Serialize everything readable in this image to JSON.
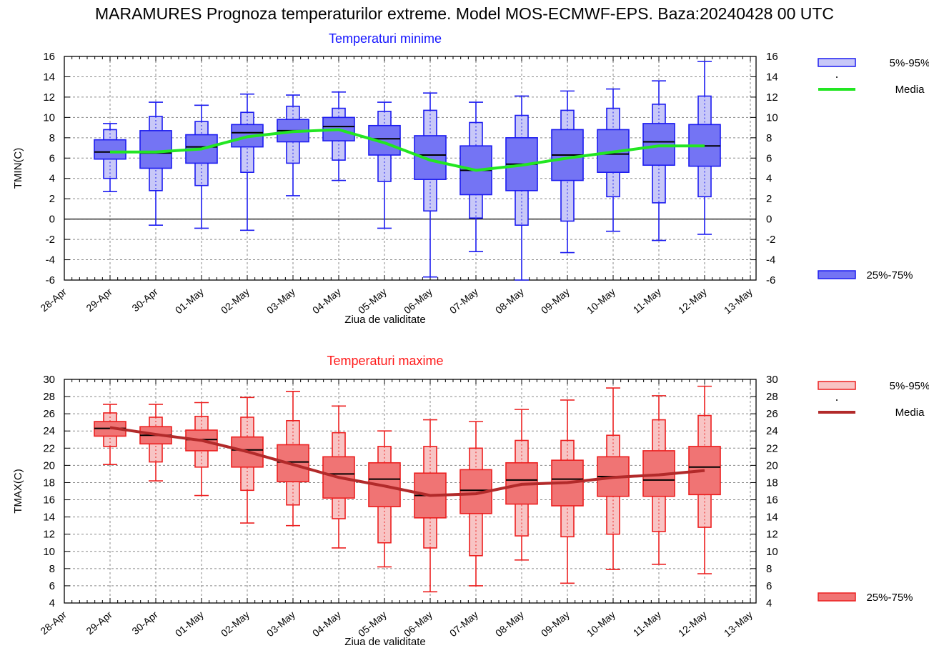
{
  "title": "MARAMURES  Prognoza temperaturilor extreme.  Model MOS-ECMWF-EPS. Baza:20240428 00 UTC",
  "chart_data": [
    {
      "type": "box",
      "title": "Temperaturi minime",
      "xlabel": "Ziua de validitate",
      "ylabel": "TMIN(C)",
      "ylim": [
        -6,
        16
      ],
      "yticks": [
        -6,
        -4,
        -2,
        0,
        2,
        4,
        6,
        8,
        10,
        12,
        14,
        16
      ],
      "y_tick_labels": [
        "-6",
        "-4",
        "-2",
        "0",
        "2",
        "4",
        "6",
        "8",
        "10",
        "12",
        "14",
        "16"
      ],
      "x_tick_labels": [
        "28-Apr",
        "29-Apr",
        "30-Apr",
        "01-May",
        "02-May",
        "03-May",
        "04-May",
        "05-May",
        "06-May",
        "07-May",
        "08-May",
        "09-May",
        "10-May",
        "11-May",
        "12-May",
        "13-May"
      ],
      "categories": [
        "29-Apr",
        "30-Apr",
        "01-May",
        "02-May",
        "03-May",
        "04-May",
        "05-May",
        "06-May",
        "07-May",
        "08-May",
        "09-May",
        "10-May",
        "11-May",
        "12-May"
      ],
      "whisker_low": [
        2.7,
        -0.6,
        -0.9,
        -1.1,
        2.3,
        3.8,
        -0.9,
        -5.7,
        -3.2,
        -6.0,
        -3.3,
        -1.2,
        -2.1,
        -1.5
      ],
      "p5": [
        4.0,
        2.8,
        3.3,
        4.6,
        5.5,
        5.8,
        3.7,
        0.8,
        0.1,
        -0.6,
        -0.2,
        2.2,
        1.6,
        2.2
      ],
      "p25": [
        5.9,
        5.0,
        5.5,
        7.1,
        7.6,
        7.7,
        6.3,
        3.9,
        2.4,
        2.8,
        3.8,
        4.6,
        5.3,
        5.2
      ],
      "median": [
        6.6,
        6.5,
        7.1,
        8.5,
        8.7,
        9.1,
        7.9,
        6.3,
        4.8,
        5.4,
        6.3,
        6.4,
        7.6,
        7.2
      ],
      "p75": [
        7.8,
        8.7,
        8.3,
        9.3,
        9.8,
        10.0,
        9.2,
        8.2,
        7.2,
        8.0,
        8.8,
        8.8,
        9.4,
        9.3
      ],
      "p95": [
        8.8,
        10.1,
        9.6,
        10.5,
        11.1,
        10.9,
        10.6,
        10.7,
        9.5,
        10.2,
        10.7,
        10.9,
        11.3,
        12.1
      ],
      "whisker_high": [
        9.4,
        11.5,
        11.2,
        12.3,
        12.2,
        12.5,
        11.5,
        12.4,
        11.5,
        12.1,
        12.6,
        12.8,
        13.6,
        15.5
      ],
      "mean": [
        6.6,
        6.6,
        6.9,
        8.1,
        8.6,
        8.8,
        7.5,
        5.8,
        4.8,
        5.3,
        6.0,
        6.6,
        7.2,
        7.2
      ],
      "legend": [
        "5%-95%",
        "Media",
        "25%-75%"
      ],
      "colors": {
        "box_light": "#c8c8f8",
        "box_dark": "#7474f4",
        "stroke": "#1c1cf0",
        "mean": "#22e622",
        "title": "#1414ff"
      }
    },
    {
      "type": "box",
      "title": "Temperaturi maxime",
      "xlabel": "Ziua de validitate",
      "ylabel": "TMAX(C)",
      "ylim": [
        4,
        30
      ],
      "yticks": [
        4,
        6,
        8,
        10,
        12,
        14,
        16,
        18,
        20,
        22,
        24,
        26,
        28,
        30
      ],
      "y_tick_labels": [
        "4",
        "6",
        "8",
        "10",
        "12",
        "14",
        "16",
        "18",
        "20",
        "22",
        "24",
        "26",
        "28",
        "30"
      ],
      "x_tick_labels": [
        "28-Apr",
        "29-Apr",
        "30-Apr",
        "01-May",
        "02-May",
        "03-May",
        "04-May",
        "05-May",
        "06-May",
        "07-May",
        "08-May",
        "09-May",
        "10-May",
        "11-May",
        "12-May",
        "13-May"
      ],
      "categories": [
        "29-Apr",
        "30-Apr",
        "01-May",
        "02-May",
        "03-May",
        "04-May",
        "05-May",
        "06-May",
        "07-May",
        "08-May",
        "09-May",
        "10-May",
        "11-May",
        "12-May"
      ],
      "whisker_low": [
        20.1,
        18.2,
        16.5,
        13.3,
        13.0,
        10.4,
        8.2,
        5.3,
        6.0,
        9.0,
        6.3,
        7.9,
        8.5,
        7.4
      ],
      "p5": [
        22.2,
        20.4,
        19.8,
        17.1,
        15.4,
        13.8,
        11.0,
        10.4,
        9.5,
        11.8,
        11.7,
        12.0,
        12.3,
        12.8
      ],
      "p25": [
        23.4,
        22.5,
        21.7,
        19.8,
        18.1,
        16.2,
        15.2,
        13.9,
        14.4,
        15.5,
        15.3,
        16.4,
        16.4,
        16.6
      ],
      "median": [
        24.3,
        23.5,
        23.0,
        21.8,
        20.4,
        19.0,
        18.4,
        16.5,
        17.1,
        18.3,
        18.4,
        18.7,
        18.3,
        19.8
      ],
      "p75": [
        25.1,
        24.5,
        24.1,
        23.3,
        22.4,
        21.0,
        20.3,
        19.1,
        19.5,
        20.3,
        20.6,
        21.0,
        21.7,
        22.2
      ],
      "p95": [
        26.1,
        25.6,
        25.7,
        25.6,
        25.2,
        23.8,
        22.2,
        22.2,
        22.0,
        22.9,
        22.9,
        23.5,
        25.3,
        25.8
      ],
      "whisker_high": [
        27.1,
        27.1,
        27.3,
        27.9,
        28.6,
        26.9,
        24.0,
        25.3,
        25.1,
        26.5,
        27.6,
        29.0,
        28.1,
        29.2
      ],
      "mean": [
        24.4,
        23.6,
        22.9,
        21.6,
        20.1,
        18.6,
        17.6,
        16.5,
        16.7,
        17.8,
        18.0,
        18.6,
        18.9,
        19.4
      ],
      "legend": [
        "5%-95%",
        "Media",
        "25%-75%"
      ],
      "colors": {
        "box_light": "#f8c4c4",
        "box_dark": "#f07474",
        "stroke": "#ec2020",
        "mean": "#b22a2a",
        "title": "#ff1a1a"
      }
    }
  ]
}
